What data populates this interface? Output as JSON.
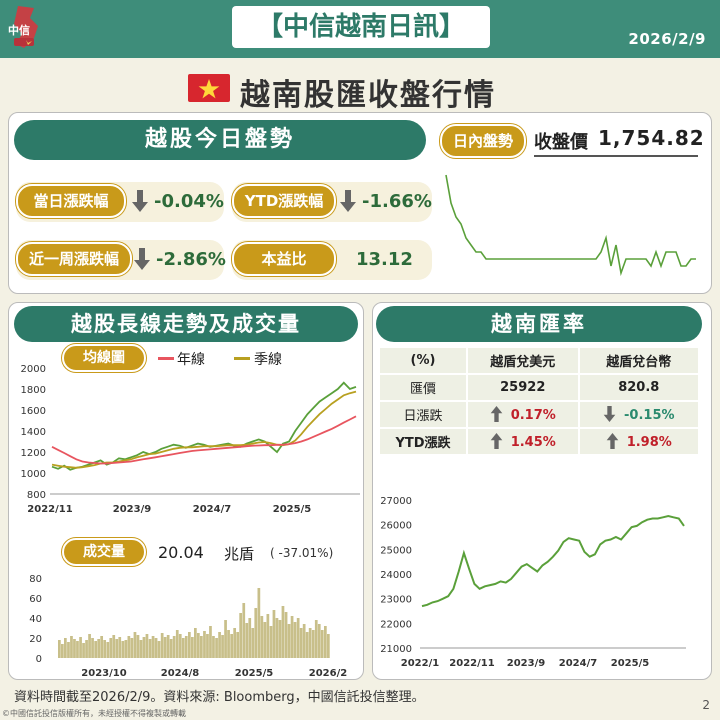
{
  "header": {
    "title": "【中信越南日訊】",
    "date": "2026/2/9",
    "logo_text": "中信"
  },
  "subtitle": "越南股匯收盤行情",
  "today": {
    "heading": "越股今日盤勢",
    "stats": [
      {
        "label": "當日漲跌幅",
        "value": "-0.04%",
        "direction": "down"
      },
      {
        "label": "YTD漲跌幅",
        "value": "-1.66%",
        "direction": "down"
      },
      {
        "label": "近一周漲跌幅",
        "value": "-2.86%",
        "direction": "down"
      },
      {
        "label": "本益比",
        "value": "13.12",
        "direction": "none"
      }
    ],
    "intraday_label": "日內盤勢",
    "close_label": "收盤價",
    "close_value": "1,754.82"
  },
  "longterm": {
    "heading": "越股長線走勢及成交量",
    "ma_label": "均線圖",
    "legend": [
      {
        "name": "年線",
        "color": "#e8555f"
      },
      {
        "name": "季線",
        "color": "#b8a020"
      }
    ],
    "volume_label": "成交量",
    "volume_value": "20.04",
    "volume_unit": "兆盾",
    "volume_change": "( -37.01%)"
  },
  "fx": {
    "heading": "越南匯率",
    "columns": [
      "(%)",
      "越盾兌美元",
      "越盾兌台幣"
    ],
    "rows": [
      {
        "label": "匯價",
        "usd": "25922",
        "twd": "820.8",
        "usd_dir": "none",
        "twd_dir": "none"
      },
      {
        "label": "日漲跌",
        "usd": "0.17%",
        "twd": "-0.15%",
        "usd_dir": "up",
        "twd_dir": "down"
      },
      {
        "label": "YTD漲跌",
        "usd": "1.45%",
        "twd": "1.98%",
        "usd_dir": "up",
        "twd_dir": "up"
      }
    ]
  },
  "footer": "資料時間截至2026/2/9。資料來源: Bloomberg，中國信託投信整理。",
  "copyright": "©中國信託投信版權所有，未經授權不得複製或轉載",
  "page_number": "2",
  "colors": {
    "accent": "#2d7a68",
    "gold": "#c99a1a",
    "index_line": "#5aa03a",
    "year_ma": "#e8555f",
    "quarter_ma": "#b8a020"
  },
  "chart_data": [
    {
      "id": "intraday",
      "type": "line",
      "title": "",
      "x": [
        0,
        5,
        10,
        15,
        20,
        25,
        30,
        35,
        40,
        45,
        50,
        55,
        60,
        65,
        70,
        75,
        80,
        85,
        90,
        95,
        100,
        105,
        110,
        115,
        120,
        125,
        130,
        135,
        140,
        145,
        150,
        155,
        160,
        165,
        170,
        175,
        180,
        185,
        190,
        195,
        200,
        205,
        210,
        215,
        220,
        225,
        230,
        235,
        240,
        245,
        250
      ],
      "y": [
        1768,
        1764,
        1762,
        1761,
        1759,
        1758,
        1757,
        1757,
        1756,
        1756,
        1756,
        1756,
        1756,
        1756,
        1756,
        1756,
        1756,
        1756,
        1756,
        1756,
        1756,
        1756,
        1756,
        1756,
        1756,
        1756,
        1756,
        1756,
        1756,
        1756,
        1756,
        1757,
        1759,
        1755,
        1758,
        1754,
        1756,
        1756,
        1756,
        1756,
        1756,
        1755,
        1757,
        1755,
        1757,
        1757,
        1757,
        1755,
        1755,
        1756,
        1756
      ],
      "series_color": "#5aa03a"
    },
    {
      "id": "long_term_ma",
      "type": "line",
      "x_ticks": [
        "2022/11",
        "2023/9",
        "2024/7",
        "2025/5"
      ],
      "y_ticks": [
        800,
        1000,
        1200,
        1400,
        1600,
        1800,
        2000
      ],
      "ylim": [
        800,
        2000
      ],
      "series": [
        {
          "name": "",
          "color": "#5aa03a",
          "values": [
            1060,
            1040,
            1070,
            1030,
            1050,
            1060,
            1080,
            1100,
            1120,
            1080,
            1100,
            1140,
            1130,
            1150,
            1170,
            1200,
            1180,
            1200,
            1230,
            1250,
            1270,
            1260,
            1240,
            1260,
            1280,
            1270,
            1250,
            1260,
            1270,
            1280,
            1260,
            1250,
            1280,
            1300,
            1320,
            1300,
            1250,
            1200,
            1280,
            1300,
            1400,
            1480,
            1560,
            1620,
            1680,
            1720,
            1760,
            1800,
            1860,
            1800,
            1820
          ]
        },
        {
          "name": "季線",
          "color": "#b8a020",
          "values": [
            1080,
            1070,
            1060,
            1055,
            1050,
            1055,
            1065,
            1075,
            1090,
            1100,
            1100,
            1110,
            1120,
            1130,
            1150,
            1165,
            1180,
            1185,
            1200,
            1215,
            1230,
            1240,
            1245,
            1245,
            1250,
            1255,
            1255,
            1255,
            1260,
            1265,
            1265,
            1265,
            1270,
            1280,
            1290,
            1295,
            1285,
            1270,
            1265,
            1275,
            1310,
            1370,
            1440,
            1500,
            1560,
            1610,
            1660,
            1700,
            1740,
            1760,
            1775
          ]
        },
        {
          "name": "年線",
          "color": "#e8555f",
          "values": [
            1250,
            1220,
            1190,
            1160,
            1130,
            1110,
            1100,
            1095,
            1090,
            1090,
            1095,
            1100,
            1105,
            1110,
            1120,
            1130,
            1140,
            1150,
            1160,
            1170,
            1180,
            1190,
            1200,
            1210,
            1215,
            1220,
            1225,
            1230,
            1235,
            1240,
            1245,
            1250,
            1255,
            1260,
            1262,
            1265,
            1265,
            1268,
            1270,
            1275,
            1285,
            1300,
            1320,
            1345,
            1370,
            1395,
            1420,
            1450,
            1480,
            1510,
            1540
          ]
        }
      ]
    },
    {
      "id": "volume",
      "type": "bar",
      "x_ticks": [
        "2023/10",
        "2024/8",
        "2025/5",
        "2026/2"
      ],
      "y_ticks": [
        0,
        20,
        40,
        60,
        80
      ],
      "ylim": [
        0,
        80
      ],
      "values": [
        18,
        14,
        20,
        16,
        22,
        19,
        17,
        21,
        15,
        18,
        24,
        20,
        17,
        19,
        22,
        18,
        16,
        20,
        23,
        19,
        21,
        17,
        18,
        22,
        20,
        26,
        23,
        18,
        21,
        24,
        19,
        22,
        20,
        17,
        25,
        21,
        23,
        19,
        22,
        28,
        24,
        20,
        22,
        26,
        21,
        30,
        25,
        22,
        27,
        24,
        32,
        22,
        20,
        26,
        23,
        38,
        28,
        24,
        30,
        26,
        45,
        55,
        35,
        40,
        30,
        50,
        70,
        42,
        36,
        44,
        32,
        48,
        40,
        38,
        52,
        46,
        34,
        42,
        36,
        40,
        30,
        34,
        26,
        30,
        28,
        38,
        34,
        28,
        32,
        24
      ]
    },
    {
      "id": "fx_usd",
      "type": "line",
      "x_ticks": [
        "2022/1",
        "2022/11",
        "2023/9",
        "2024/7",
        "2025/5"
      ],
      "y_ticks": [
        21000,
        22000,
        23000,
        24000,
        25000,
        26000,
        27000
      ],
      "ylim": [
        21000,
        27000
      ],
      "values": [
        22700,
        22750,
        22850,
        22900,
        23000,
        23100,
        23400,
        24100,
        24850,
        24200,
        23600,
        23400,
        23500,
        23550,
        23600,
        23700,
        23650,
        23800,
        24050,
        24300,
        24400,
        24250,
        24100,
        24350,
        24500,
        24700,
        24950,
        25300,
        25450,
        25400,
        25350,
        24900,
        24700,
        24800,
        25200,
        25350,
        25400,
        25500,
        25400,
        25650,
        25900,
        25950,
        26100,
        26200,
        26250,
        26250,
        26300,
        26350,
        26300,
        26250,
        25950
      ],
      "series_color": "#5aa03a"
    }
  ]
}
